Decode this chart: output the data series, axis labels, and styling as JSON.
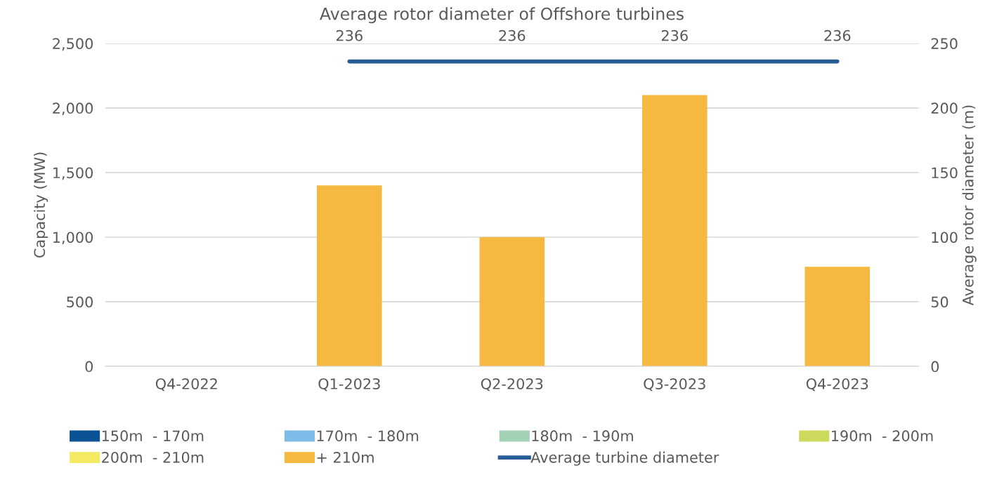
{
  "chart_data": {
    "type": "bar",
    "title": "Average rotor diameter of Offshore turbines",
    "ylabel": "Capacity (MW)",
    "y2label": "Average rotor diameter (m)",
    "categories": [
      "Q4-2022",
      "Q1-2023",
      "Q2-2023",
      "Q3-2023",
      "Q4-2023"
    ],
    "series": [
      {
        "name": "150m  - 170m",
        "color": "#0b5394",
        "values": [
          0,
          0,
          0,
          0,
          0
        ]
      },
      {
        "name": "170m  - 180m",
        "color": "#7dbbe8",
        "values": [
          0,
          0,
          0,
          0,
          0
        ]
      },
      {
        "name": "180m  - 190m",
        "color": "#a3d1b5",
        "values": [
          0,
          0,
          0,
          0,
          0
        ]
      },
      {
        "name": "190m  - 200m",
        "color": "#cdd95c",
        "values": [
          0,
          0,
          0,
          0,
          0
        ]
      },
      {
        "name": "200m  - 210m",
        "color": "#f4ea62",
        "values": [
          0,
          0,
          0,
          0,
          0
        ]
      },
      {
        "name": "+ 210m",
        "color": "#f5b841",
        "values": [
          0,
          1400,
          1000,
          2100,
          770
        ]
      },
      {
        "name": "Average turbine diameter",
        "type": "line",
        "axis": "y2",
        "color": "#275d94",
        "values": [
          null,
          236,
          236,
          236,
          236
        ],
        "value_labels": [
          null,
          "236",
          "236",
          "236",
          "236"
        ]
      }
    ],
    "ylim": [
      0,
      2500
    ],
    "yticks": [
      {
        "value": 0,
        "label": "0"
      },
      {
        "value": 500,
        "label": "500"
      },
      {
        "value": 1000,
        "label": "1,000"
      },
      {
        "value": 1500,
        "label": "1,500"
      },
      {
        "value": 2000,
        "label": "2,000"
      },
      {
        "value": 2500,
        "label": "2,500"
      }
    ],
    "y2lim": [
      0,
      250
    ],
    "y2ticks": [
      0,
      50,
      100,
      150,
      200,
      250
    ],
    "grid": "y",
    "legend": "bottom",
    "marker": "none",
    "line_style": "solid"
  }
}
